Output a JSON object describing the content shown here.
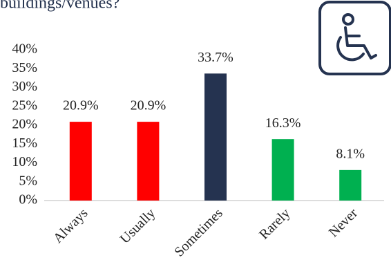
{
  "chart_data": {
    "type": "bar",
    "title": "buildings/venues?",
    "categories": [
      "Always",
      "Usually",
      "Sometimes",
      "Rarely",
      "Never"
    ],
    "values": [
      20.9,
      20.9,
      33.7,
      16.3,
      8.1
    ],
    "value_labels": [
      "20.9%",
      "20.9%",
      "33.7%",
      "16.3%",
      "8.1%"
    ],
    "colors": [
      "#ff0000",
      "#ff0000",
      "#253350",
      "#00b050",
      "#00b050"
    ],
    "ylim": [
      0,
      40
    ],
    "yticks": [
      {
        "value": 0,
        "label": "0%"
      },
      {
        "value": 5,
        "label": "5%"
      },
      {
        "value": 10,
        "label": "10%"
      },
      {
        "value": 15,
        "label": "15%"
      },
      {
        "value": 20,
        "label": "20%"
      },
      {
        "value": 25,
        "label": "25%"
      },
      {
        "value": 30,
        "label": "30%"
      },
      {
        "value": 35,
        "label": "35%"
      },
      {
        "value": 40,
        "label": "40%"
      }
    ],
    "grid": false
  }
}
